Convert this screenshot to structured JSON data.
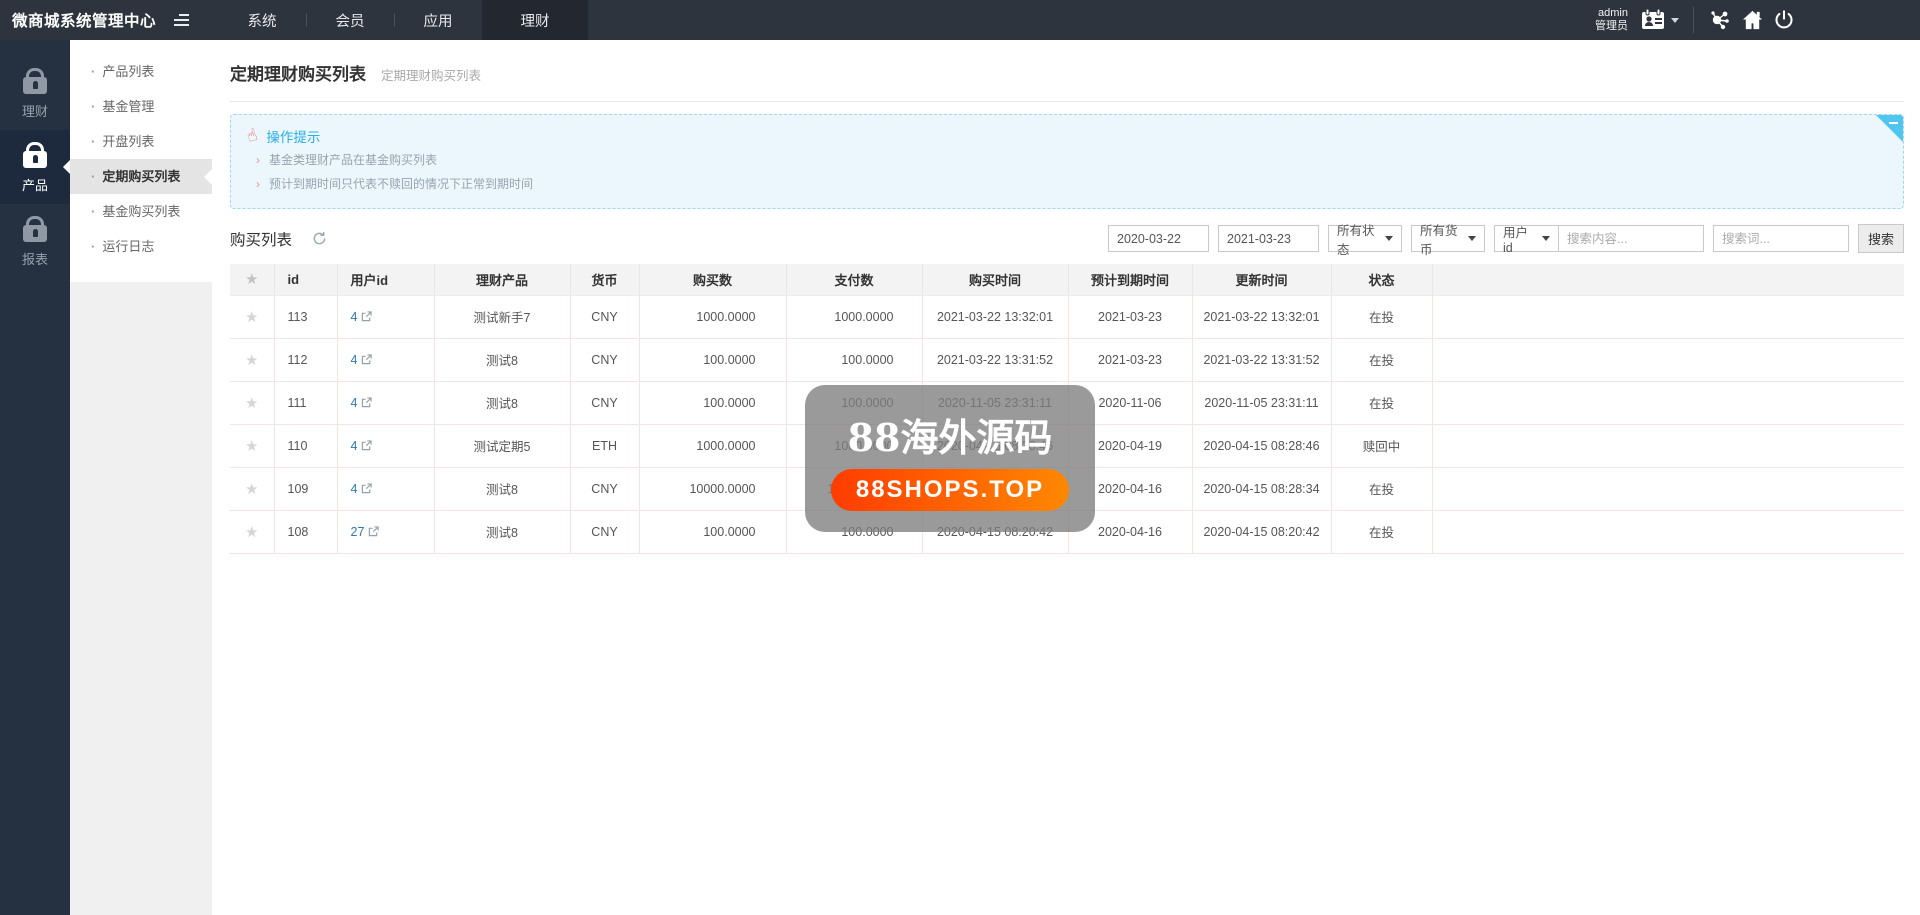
{
  "topbar": {
    "logo": "微商城系统管理中心",
    "nav": [
      "系统",
      "会员",
      "应用",
      "理财"
    ],
    "user": {
      "name": "admin",
      "role": "管理员"
    }
  },
  "rail": {
    "items": [
      "理财",
      "产品",
      "报表"
    ]
  },
  "submenu": {
    "items": [
      "产品列表",
      "基金管理",
      "开盘列表",
      "定期购买列表",
      "基金购买列表",
      "运行日志"
    ]
  },
  "page": {
    "title": "定期理财购买列表",
    "subtitle": "定期理财购买列表"
  },
  "alert": {
    "title": "操作提示",
    "tips": [
      "基金类理财产品在基金购买列表",
      "预计到期时间只代表不赎回的情况下正常到期时间"
    ]
  },
  "list": {
    "heading": "购买列表"
  },
  "filters": {
    "date_from": "2020-03-22",
    "date_to": "2021-03-23",
    "status": "所有状态",
    "currency": "所有货币",
    "search_field": "用户id",
    "content_placeholder": "搜索内容...",
    "keyword_placeholder": "搜索词...",
    "search_button": "搜索"
  },
  "table": {
    "columns": [
      {
        "key": "star",
        "label": ""
      },
      {
        "key": "id",
        "label": "id"
      },
      {
        "key": "user",
        "label": "用户id"
      },
      {
        "key": "prod",
        "label": "理财产品"
      },
      {
        "key": "cur",
        "label": "货币"
      },
      {
        "key": "buy",
        "label": "购买数"
      },
      {
        "key": "pay",
        "label": "支付数"
      },
      {
        "key": "btime",
        "label": "购买时间"
      },
      {
        "key": "etime",
        "label": "预计到期时间"
      },
      {
        "key": "utime",
        "label": "更新时间"
      },
      {
        "key": "stat",
        "label": "状态"
      },
      {
        "key": "fill",
        "label": ""
      }
    ],
    "rows": [
      {
        "id": "113",
        "user": "4",
        "prod": "测试新手7",
        "cur": "CNY",
        "buy": "1000.0000",
        "pay": "1000.0000",
        "btime": "2021-03-22 13:32:01",
        "etime": "2021-03-23",
        "utime": "2021-03-22 13:32:01",
        "stat": "在投"
      },
      {
        "id": "112",
        "user": "4",
        "prod": "测试8",
        "cur": "CNY",
        "buy": "100.0000",
        "pay": "100.0000",
        "btime": "2021-03-22 13:31:52",
        "etime": "2021-03-23",
        "utime": "2021-03-22 13:31:52",
        "stat": "在投"
      },
      {
        "id": "111",
        "user": "4",
        "prod": "测试8",
        "cur": "CNY",
        "buy": "100.0000",
        "pay": "100.0000",
        "btime": "2020-11-05 23:31:11",
        "etime": "2020-11-06",
        "utime": "2020-11-05 23:31:11",
        "stat": "在投"
      },
      {
        "id": "110",
        "user": "4",
        "prod": "测试定期5",
        "cur": "ETH",
        "buy": "1000.0000",
        "pay": "1000.0000",
        "btime": "2020-04-15 08:28:46",
        "etime": "2020-04-19",
        "utime": "2020-04-15 08:28:46",
        "stat": "赎回中"
      },
      {
        "id": "109",
        "user": "4",
        "prod": "测试8",
        "cur": "CNY",
        "buy": "10000.0000",
        "pay": "10000.0000",
        "btime": "2020-04-15 08:28:34",
        "etime": "2020-04-16",
        "utime": "2020-04-15 08:28:34",
        "stat": "在投"
      },
      {
        "id": "108",
        "user": "27",
        "prod": "测试8",
        "cur": "CNY",
        "buy": "100.0000",
        "pay": "100.0000",
        "btime": "2020-04-15 08:20:42",
        "etime": "2020-04-16",
        "utime": "2020-04-15 08:20:42",
        "stat": "在投"
      }
    ]
  },
  "watermark": {
    "line1": "88海外源码",
    "badge": "88SHOPS.TOP"
  },
  "icons": {
    "star": "★",
    "hand": "☝"
  },
  "colors": {
    "topbar_bg": "#2e343d",
    "topbar_active": "#23272f",
    "rail_bg": "#253140",
    "rail_active": "#1d2a3e",
    "alert_bg": "#ecf7fd",
    "alert_border": "#9ed9f2",
    "alert_accent": "#29aee6",
    "fold": "#4ec6f0",
    "link": "#3178b0",
    "row_border": "#f6e3e3",
    "watermark_gradient_start": "#ff3c00",
    "watermark_gradient_end": "#ff8800"
  }
}
